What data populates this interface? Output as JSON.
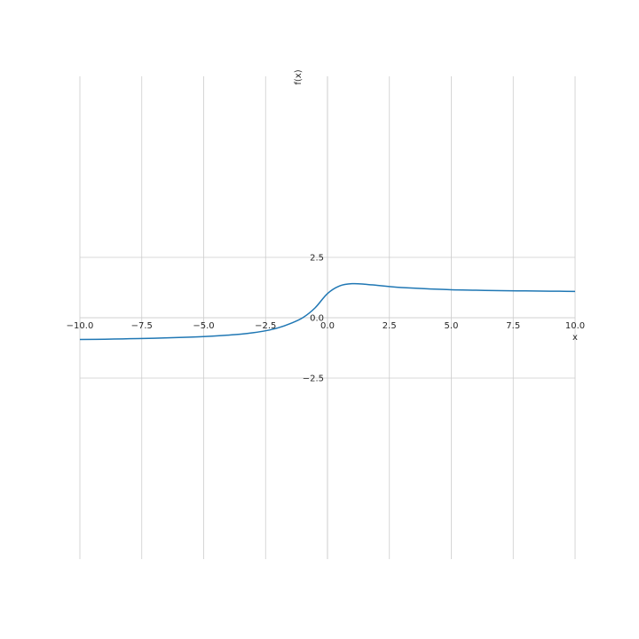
{
  "chart_data": {
    "type": "line",
    "title": "",
    "xlabel": "x",
    "ylabel": "f(x)",
    "xlim": [
      -10,
      10
    ],
    "ylim": [
      -10,
      10
    ],
    "grid": true,
    "x_ticks": [
      -10.0,
      -7.5,
      -5.0,
      -2.5,
      0.0,
      2.5,
      5.0,
      7.5,
      10.0
    ],
    "x_tick_labels": [
      "−10.0",
      "−7.5",
      "−5.0",
      "−2.5",
      "0.0",
      "2.5",
      "5.0",
      "7.5",
      "10.0"
    ],
    "y_ticks": [
      -2.5,
      0.0,
      2.5
    ],
    "y_tick_labels": [
      "−2.5",
      "0.0",
      "2.5"
    ],
    "series": [
      {
        "color": "#1f77b4",
        "x": [
          -10,
          -9,
          -8,
          -7,
          -6,
          -5,
          -4,
          -3.5,
          -3,
          -2.5,
          -2,
          -1.5,
          -1,
          -0.5,
          0,
          0.5,
          1,
          1.5,
          2,
          2.5,
          3,
          4,
          5,
          6,
          7,
          8,
          9,
          10
        ],
        "y": [
          -0.9,
          -0.89,
          -0.87,
          -0.85,
          -0.82,
          -0.78,
          -0.72,
          -0.68,
          -0.62,
          -0.54,
          -0.42,
          -0.24,
          0.0,
          0.41,
          1.0,
          1.32,
          1.41,
          1.39,
          1.34,
          1.29,
          1.25,
          1.2,
          1.16,
          1.14,
          1.12,
          1.11,
          1.1,
          1.09
        ]
      }
    ]
  }
}
